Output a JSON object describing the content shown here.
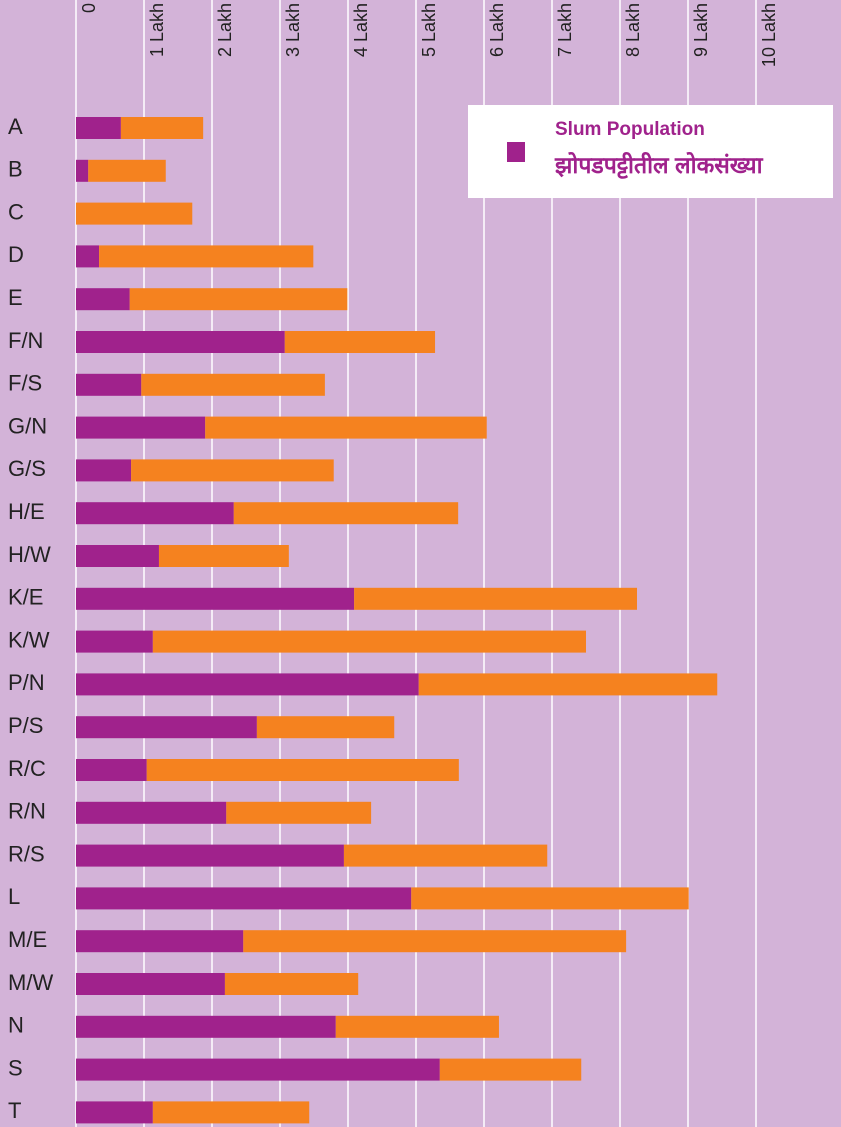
{
  "chart_data": {
    "type": "stacked-barh",
    "categories": [
      "A",
      "B",
      "C",
      "D",
      "E",
      "F/N",
      "F/S",
      "G/N",
      "G/S",
      "H/E",
      "H/W",
      "K/E",
      "K/W",
      "P/N",
      "P/S",
      "R/C",
      "R/N",
      "R/S",
      "L",
      "M/E",
      "M/W",
      "N",
      "S",
      "T"
    ],
    "series": [
      {
        "name": "Slum Population",
        "name_local": "झोपडपट्टीतील लोकसंख्या",
        "color": "#a0228c",
        "values": [
          0.66,
          0.18,
          0,
          0.34,
          0.79,
          3.07,
          0.96,
          1.9,
          0.81,
          2.32,
          1.22,
          4.09,
          1.13,
          5.04,
          2.66,
          1.04,
          2.21,
          3.94,
          4.93,
          2.46,
          2.19,
          3.82,
          5.35,
          1.13
        ]
      },
      {
        "color": "#f5821f",
        "values": [
          1.21,
          1.14,
          1.71,
          3.15,
          3.2,
          2.21,
          2.7,
          4.14,
          2.98,
          3.3,
          1.91,
          4.16,
          6.37,
          4.39,
          2.02,
          4.59,
          2.13,
          2.99,
          4.08,
          5.63,
          1.96,
          2.4,
          2.08,
          2.3
        ]
      }
    ],
    "xlim": [
      0,
      11.25
    ],
    "xticks": [
      0,
      {
        "value": 1,
        "label": "1 Lakh"
      },
      {
        "value": 2,
        "label": "2 Lakh"
      },
      {
        "value": 3,
        "label": "3 Lakh"
      },
      {
        "value": 4,
        "label": "4 Lakh"
      },
      {
        "value": 5,
        "label": "5 Lakh"
      },
      {
        "value": 6,
        "label": "6 Lakh"
      },
      {
        "value": 7,
        "label": "7 Lakh"
      },
      {
        "value": 8,
        "label": "8 Lakh"
      },
      {
        "value": 9,
        "label": "9 Lakh"
      },
      {
        "value": 10,
        "label": "10 Lakh"
      }
    ],
    "grid": true,
    "legend": "upper right"
  }
}
